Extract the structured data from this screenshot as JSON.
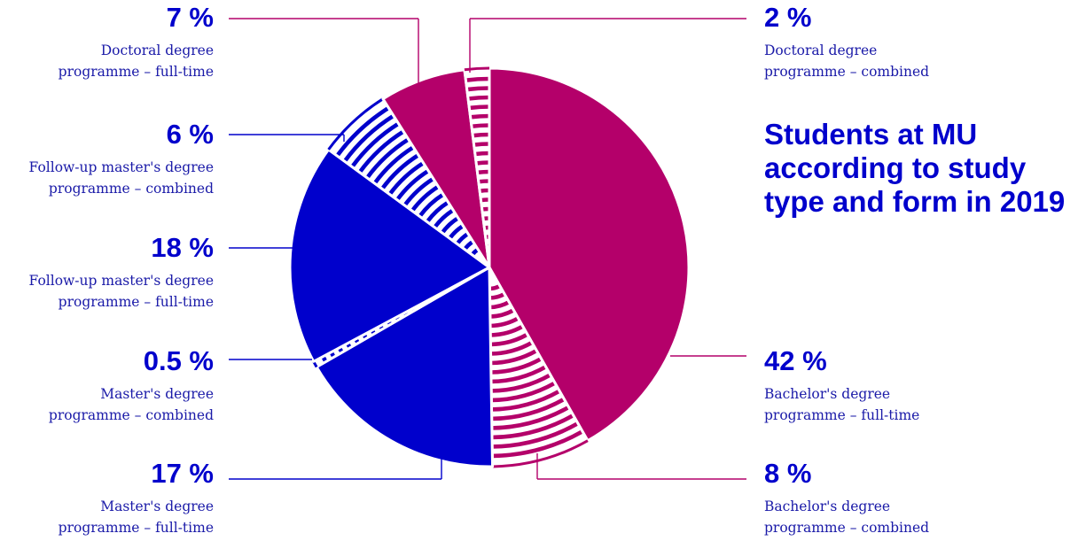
{
  "chart_data": {
    "type": "pie",
    "title_lines": [
      "Students at MU",
      "according to study",
      "type and form in 2019"
    ],
    "colors": {
      "magenta": "#b4006a",
      "blue": "#0000cc",
      "text": "#1a1aa8"
    },
    "slices": [
      {
        "value": 42,
        "pct_label": "42 %",
        "lines": [
          "Bachelor's degree",
          "programme – full-time"
        ],
        "color": "#b4006a",
        "hatched": false
      },
      {
        "value": 8,
        "pct_label": "8 %",
        "lines": [
          "Bachelor's degree",
          "programme – combined"
        ],
        "color": "#b4006a",
        "hatched": true
      },
      {
        "value": 17,
        "pct_label": "17 %",
        "lines": [
          "Master's degree",
          "programme – full-time"
        ],
        "color": "#0000cc",
        "hatched": false
      },
      {
        "value": 0.5,
        "pct_label": "0.5 %",
        "lines": [
          "Master's degree",
          "programme – combined"
        ],
        "color": "#0000cc",
        "hatched": true
      },
      {
        "value": 18,
        "pct_label": "18 %",
        "lines": [
          "Follow-up master's degree",
          "programme – full-time"
        ],
        "color": "#0000cc",
        "hatched": false
      },
      {
        "value": 6,
        "pct_label": "6 %",
        "lines": [
          "Follow-up master's degree",
          "programme – combined"
        ],
        "color": "#0000cc",
        "hatched": true
      },
      {
        "value": 7,
        "pct_label": "7 %",
        "lines": [
          "Doctoral degree",
          "programme – full-time"
        ],
        "color": "#b4006a",
        "hatched": false
      },
      {
        "value": 2,
        "pct_label": "2 %",
        "lines": [
          "Doctoral degree",
          "programme – combined"
        ],
        "color": "#b4006a",
        "hatched": true
      }
    ]
  }
}
